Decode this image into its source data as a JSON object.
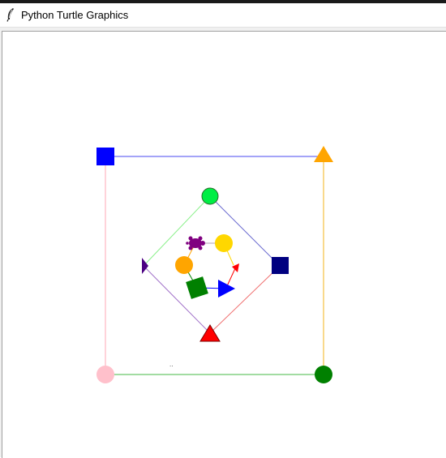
{
  "window": {
    "title": "Python Turtle Graphics",
    "icon": "feather-icon"
  },
  "canvas": {
    "background": "#ffffff",
    "small_text": "..",
    "colors": {
      "outer_top_line": "#4a4af0",
      "outer_right_line": "#f5c040",
      "outer_bottom_line": "#6ac86a",
      "outer_left_line": "#ffb6c1",
      "diamond_top_left_line": "#8af08a",
      "diamond_top_right_line": "#6a6ad0",
      "diamond_bottom_right_line": "#f07070",
      "diamond_bottom_left_line": "#a070c8",
      "blue_square": "#0000ff",
      "orange_triangle": "#ffa500",
      "pink_circle": "#ffc0cb",
      "green_circle": "#008000",
      "lime_circle": "#00ee44",
      "navy_square": "#000080",
      "red_triangle": "#ff0000",
      "indigo_arrow": "#4b0082",
      "purple_turtle": "#800080",
      "gold_circle": "#ffd700",
      "orange_circle": "#ffa500",
      "red_arrow": "#ff0000",
      "green_square": "#008000",
      "blue_triangle": "#0000ff"
    }
  }
}
